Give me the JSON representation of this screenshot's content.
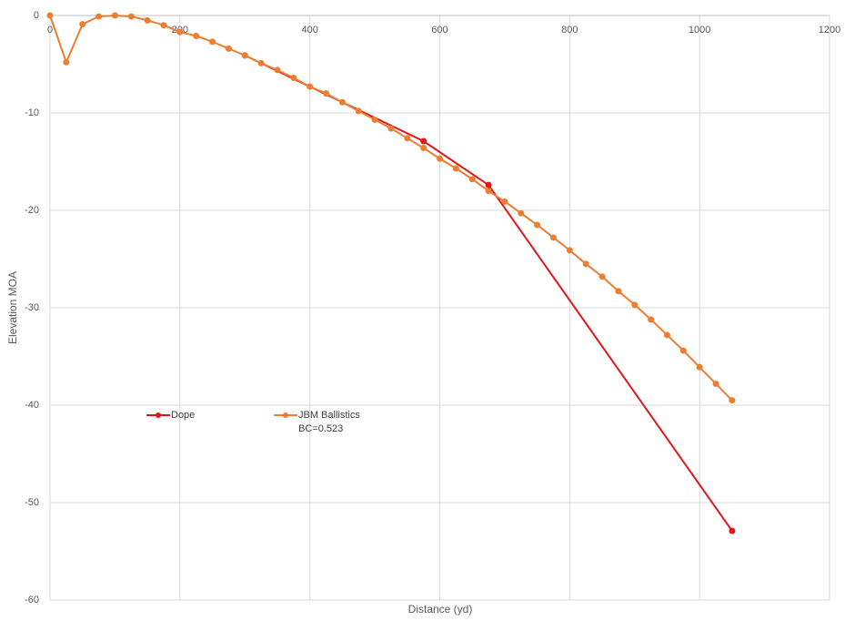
{
  "chart_data": {
    "type": "line",
    "x_label": "Distance (yd)",
    "y_label": "Elevation MOA",
    "xlim": [
      0,
      1200
    ],
    "xticks": [
      0,
      200,
      400,
      600,
      800,
      1000,
      1200
    ],
    "ylim": [
      -60,
      0
    ],
    "yticks": [
      0,
      -10,
      -20,
      -30,
      -40,
      -50,
      -60
    ],
    "grid": true,
    "series": [
      {
        "name": "Dope",
        "color": "#e0181b",
        "x": [
          300,
          575,
          675,
          1050
        ],
        "values": [
          -4.1,
          -12.9,
          -17.4,
          -52.9
        ]
      },
      {
        "name": "JBM Ballistics BC=0.523",
        "color": "#ed7d31",
        "x": [
          0,
          25,
          50,
          75,
          100,
          125,
          150,
          175,
          200,
          225,
          250,
          275,
          300,
          325,
          350,
          375,
          400,
          425,
          450,
          475,
          500,
          525,
          550,
          575,
          600,
          625,
          650,
          675,
          700,
          725,
          750,
          775,
          800,
          825,
          850,
          875,
          900,
          925,
          950,
          975,
          1000,
          1025,
          1050
        ],
        "values": [
          0,
          -4.8,
          -0.9,
          -0.1,
          0,
          -0.1,
          -0.5,
          -1.0,
          -1.7,
          -2.1,
          -2.7,
          -3.4,
          -4.1,
          -4.9,
          -5.6,
          -6.4,
          -7.3,
          -8.0,
          -8.9,
          -9.8,
          -10.7,
          -11.6,
          -12.6,
          -13.6,
          -14.7,
          -15.7,
          -16.8,
          -18.0,
          -19.1,
          -20.3,
          -21.5,
          -22.8,
          -24.1,
          -25.5,
          -26.8,
          -28.3,
          -29.7,
          -31.2,
          -32.8,
          -34.4,
          -36.1,
          -37.8,
          -39.5
        ]
      }
    ]
  }
}
